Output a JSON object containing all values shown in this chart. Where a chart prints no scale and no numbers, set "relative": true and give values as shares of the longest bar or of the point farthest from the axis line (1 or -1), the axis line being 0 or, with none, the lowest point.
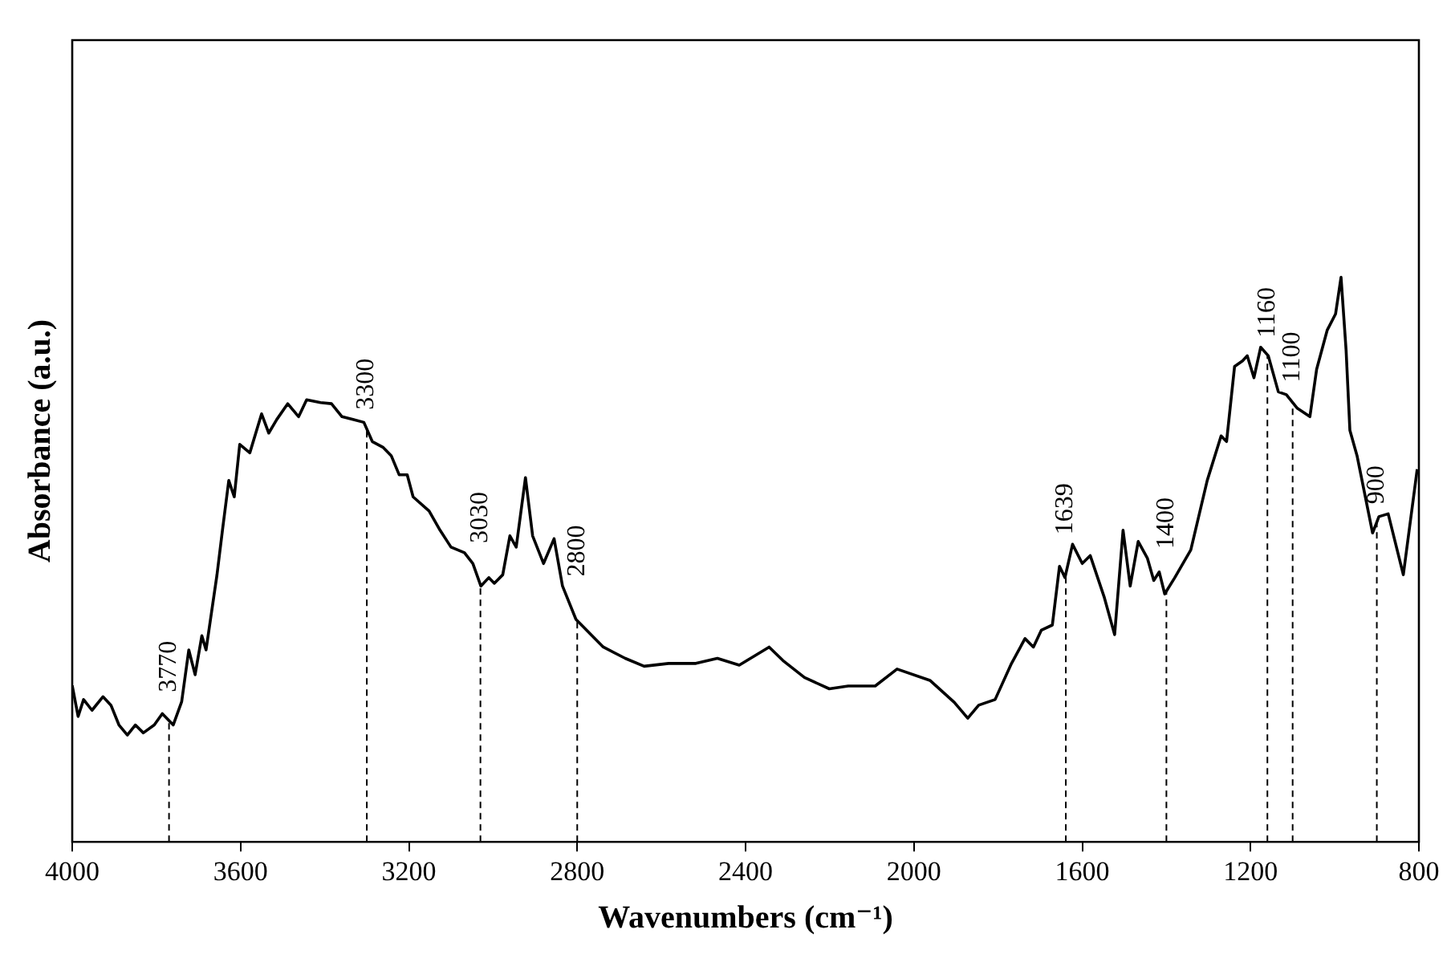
{
  "chart_data": {
    "type": "line",
    "xlabel": "Wavenumbers (cm⁻¹)",
    "ylabel": "Absorbance (a.u.)",
    "relative": true,
    "color": "#000000",
    "marker": "none",
    "line_style": "solid",
    "legend": false,
    "grid": false,
    "tick_labels": "x",
    "xlim": [
      4000,
      800
    ],
    "xticks": [
      4000,
      3600,
      3200,
      2800,
      2400,
      2000,
      1600,
      1200,
      800
    ],
    "x": [
      4000,
      3986,
      3973,
      3953,
      3927,
      3908,
      3889,
      3869,
      3850,
      3831,
      3805,
      3786,
      3760,
      3740,
      3723,
      3708,
      3692,
      3682,
      3656,
      3643,
      3628,
      3615,
      3602,
      3578,
      3550,
      3533,
      3514,
      3488,
      3462,
      3443,
      3410,
      3384,
      3359,
      3333,
      3307,
      3287,
      3262,
      3242,
      3223,
      3204,
      3190,
      3152,
      3126,
      3100,
      3068,
      3048,
      3029,
      3010,
      2997,
      2977,
      2960,
      2945,
      2923,
      2906,
      2880,
      2855,
      2835,
      2803,
      2738,
      2686,
      2641,
      2583,
      2518,
      2467,
      2415,
      2344,
      2311,
      2260,
      2201,
      2156,
      2092,
      2040,
      1962,
      1904,
      1872,
      1846,
      1807,
      1768,
      1736,
      1716,
      1697,
      1671,
      1654,
      1641,
      1623,
      1600,
      1581,
      1548,
      1523,
      1503,
      1486,
      1467,
      1445,
      1430,
      1417,
      1404,
      1380,
      1342,
      1303,
      1270,
      1257,
      1238,
      1219,
      1208,
      1192,
      1176,
      1158,
      1134,
      1115,
      1089,
      1059,
      1043,
      1018,
      998,
      985,
      973,
      964,
      947,
      910,
      895,
      873,
      837,
      804
    ],
    "values": [
      0.277,
      0.222,
      0.252,
      0.233,
      0.257,
      0.242,
      0.207,
      0.189,
      0.207,
      0.193,
      0.207,
      0.227,
      0.207,
      0.248,
      0.34,
      0.296,
      0.365,
      0.34,
      0.473,
      0.552,
      0.64,
      0.611,
      0.704,
      0.689,
      0.758,
      0.724,
      0.748,
      0.776,
      0.753,
      0.783,
      0.778,
      0.776,
      0.753,
      0.748,
      0.743,
      0.709,
      0.699,
      0.684,
      0.65,
      0.65,
      0.611,
      0.586,
      0.552,
      0.522,
      0.512,
      0.493,
      0.453,
      0.468,
      0.458,
      0.473,
      0.542,
      0.522,
      0.645,
      0.542,
      0.493,
      0.537,
      0.453,
      0.394,
      0.345,
      0.325,
      0.311,
      0.316,
      0.316,
      0.325,
      0.313,
      0.345,
      0.321,
      0.291,
      0.271,
      0.276,
      0.276,
      0.306,
      0.286,
      0.247,
      0.219,
      0.242,
      0.252,
      0.316,
      0.36,
      0.345,
      0.375,
      0.384,
      0.488,
      0.468,
      0.527,
      0.493,
      0.507,
      0.434,
      0.367,
      0.552,
      0.453,
      0.532,
      0.502,
      0.463,
      0.478,
      0.439,
      0.468,
      0.517,
      0.64,
      0.719,
      0.709,
      0.842,
      0.852,
      0.861,
      0.822,
      0.876,
      0.861,
      0.797,
      0.792,
      0.768,
      0.753,
      0.837,
      0.906,
      0.935,
      1,
      0.871,
      0.729,
      0.684,
      0.547,
      0.576,
      0.581,
      0.473,
      0.66
    ],
    "ref_lines": [
      {
        "axis": "x",
        "value": 3770,
        "label": "3770",
        "line_style": "dashed"
      },
      {
        "axis": "x",
        "value": 3300,
        "label": "3300",
        "line_style": "dashed"
      },
      {
        "axis": "x",
        "value": 3030,
        "label": "3030",
        "line_style": "dashed"
      },
      {
        "axis": "x",
        "value": 2800,
        "label": "2800",
        "line_style": "dashed"
      },
      {
        "axis": "x",
        "value": 1639,
        "label": "1639",
        "line_style": "dashed"
      },
      {
        "axis": "x",
        "value": 1400,
        "label": "1400",
        "line_style": "dashed"
      },
      {
        "axis": "x",
        "value": 1160,
        "label": "1160",
        "line_style": "dashed"
      },
      {
        "axis": "x",
        "value": 1100,
        "label": "1100",
        "line_style": "dashed"
      },
      {
        "axis": "x",
        "value": 900,
        "label": "900",
        "line_style": "dashed"
      }
    ]
  }
}
